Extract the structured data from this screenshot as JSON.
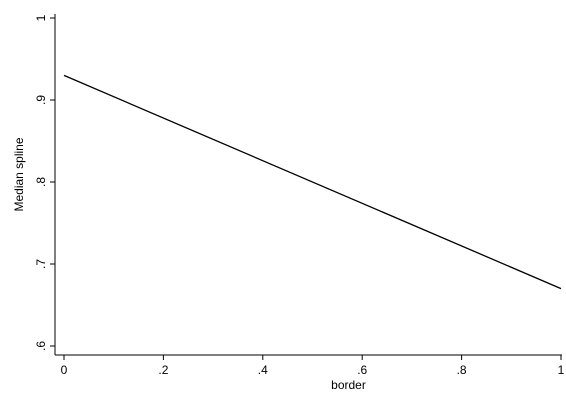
{
  "chart_data": {
    "type": "line",
    "title": "",
    "xlabel": "border",
    "ylabel": "Median spline",
    "xlim": [
      0,
      1
    ],
    "ylim": [
      0.6,
      1
    ],
    "x_ticks": [
      {
        "value": 0,
        "label": "0"
      },
      {
        "value": 0.2,
        "label": ".2"
      },
      {
        "value": 0.4,
        "label": ".4"
      },
      {
        "value": 0.6,
        "label": ".6"
      },
      {
        "value": 0.8,
        "label": ".8"
      },
      {
        "value": 1,
        "label": "1"
      }
    ],
    "y_ticks": [
      {
        "value": 0.6,
        "label": ".6"
      },
      {
        "value": 0.7,
        "label": ".7"
      },
      {
        "value": 0.8,
        "label": ".8"
      },
      {
        "value": 0.9,
        "label": ".9"
      },
      {
        "value": 1,
        "label": "1"
      }
    ],
    "grid": false,
    "line_color": "#000000",
    "series": [
      {
        "x": [
          0,
          1
        ],
        "y": [
          0.93,
          0.67
        ]
      }
    ]
  }
}
